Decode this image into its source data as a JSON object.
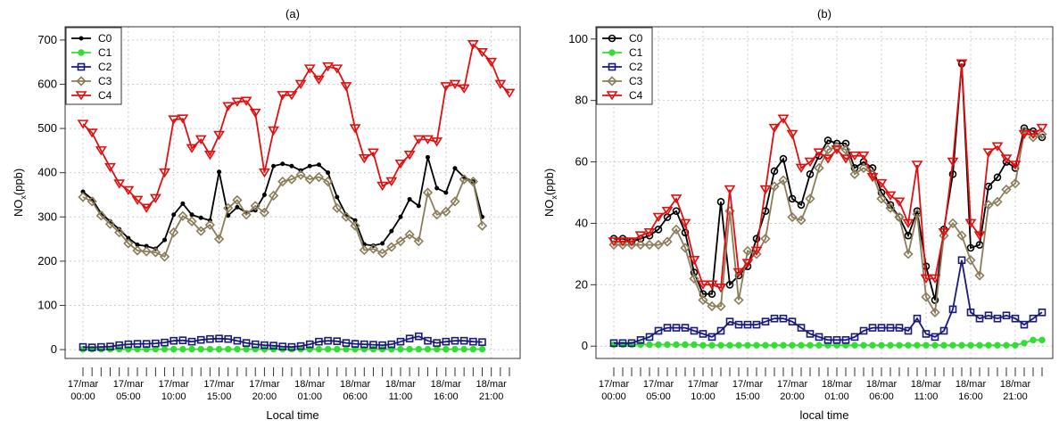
{
  "chart_data": [
    {
      "type": "line",
      "title": "(a)",
      "xlabel": "Local time",
      "ylabel": "NO",
      "ylabel_sub": "x",
      "ylabel_unit": "(ppb)",
      "ylim": [
        0,
        720
      ],
      "yticks": [
        "0",
        "100",
        "200",
        "300",
        "400",
        "500",
        "600",
        "700"
      ],
      "xtick_labels": [
        [
          "17/mar",
          "00:00"
        ],
        [
          "17/mar",
          "05:00"
        ],
        [
          "17/mar",
          "10:00"
        ],
        [
          "17/mar",
          "15:00"
        ],
        [
          "17/mar",
          "20:00"
        ],
        [
          "18/mar",
          "01:00"
        ],
        [
          "18/mar",
          "06:00"
        ],
        [
          "18/mar",
          "11:00"
        ],
        [
          "18/mar",
          "16:00"
        ],
        [
          "18/mar",
          "21:00"
        ]
      ],
      "grid": true,
      "legend_position": "top-left",
      "series": [
        {
          "name": "C0",
          "color": "#000000",
          "marker": "dot",
          "values": [
            357,
            340,
            308,
            290,
            272,
            252,
            237,
            234,
            228,
            248,
            305,
            330,
            305,
            298,
            292,
            402,
            303,
            322,
            310,
            315,
            350,
            415,
            420,
            415,
            405,
            415,
            418,
            400,
            345,
            305,
            292,
            238,
            235,
            240,
            268,
            300,
            340,
            325,
            435,
            365,
            355,
            410,
            390,
            380,
            300
          ]
        },
        {
          "name": "C1",
          "color": "#33dd33",
          "marker": "filled-circle",
          "values": [
            1,
            1,
            1,
            1,
            1,
            1,
            1,
            1,
            1,
            1,
            1,
            1,
            1,
            1,
            1,
            1,
            1,
            1,
            1,
            1,
            1,
            1,
            1,
            1,
            1,
            1,
            1,
            1,
            1,
            1,
            1,
            1,
            1,
            1,
            1,
            1,
            1,
            1,
            1,
            1,
            1,
            1,
            1,
            1,
            1
          ]
        },
        {
          "name": "C2",
          "color": "#1a1a7a",
          "marker": "square",
          "values": [
            6,
            5,
            6,
            7,
            10,
            12,
            13,
            13,
            14,
            16,
            20,
            21,
            18,
            22,
            24,
            25,
            24,
            20,
            15,
            12,
            10,
            9,
            7,
            6,
            8,
            12,
            18,
            20,
            19,
            15,
            13,
            12,
            11,
            10,
            12,
            18,
            25,
            30,
            20,
            15,
            18,
            20,
            20,
            18,
            17
          ]
        },
        {
          "name": "C3",
          "color": "#8b7d5a",
          "marker": "diamond",
          "values": [
            345,
            335,
            303,
            284,
            265,
            240,
            224,
            222,
            220,
            210,
            265,
            302,
            290,
            268,
            282,
            250,
            320,
            338,
            305,
            325,
            310,
            348,
            380,
            385,
            395,
            385,
            390,
            380,
            320,
            300,
            280,
            225,
            228,
            218,
            232,
            245,
            260,
            245,
            355,
            305,
            312,
            335,
            385,
            380,
            280
          ]
        },
        {
          "name": "C4",
          "color": "#e01010",
          "marker": "triangle-down",
          "values": [
            510,
            490,
            450,
            412,
            375,
            360,
            338,
            320,
            342,
            400,
            520,
            522,
            455,
            475,
            440,
            485,
            550,
            560,
            562,
            535,
            400,
            495,
            575,
            575,
            600,
            635,
            610,
            640,
            635,
            595,
            500,
            432,
            445,
            370,
            380,
            420,
            440,
            475,
            475,
            470,
            595,
            600,
            590,
            690,
            672,
            650,
            600,
            580
          ]
        }
      ]
    },
    {
      "type": "line",
      "title": "(b)",
      "xlabel": "local time",
      "ylabel": "NO",
      "ylabel_sub": "x",
      "ylabel_unit": "(ppb)",
      "ylim": [
        -2,
        103
      ],
      "yticks": [
        "0",
        "20",
        "40",
        "60",
        "80",
        "100"
      ],
      "xtick_labels": [
        [
          "17/mar",
          "00:00"
        ],
        [
          "17/mar",
          "05:00"
        ],
        [
          "17/mar",
          "10:00"
        ],
        [
          "17/mar",
          "15:00"
        ],
        [
          "17/mar",
          "20:00"
        ],
        [
          "18/mar",
          "01:00"
        ],
        [
          "18/mar",
          "06:00"
        ],
        [
          "18/mar",
          "11:00"
        ],
        [
          "18/mar",
          "16:00"
        ],
        [
          "18/mar",
          "21:00"
        ]
      ],
      "grid": true,
      "legend_position": "top-left",
      "series": [
        {
          "name": "C0",
          "color": "#000000",
          "marker": "open-circle",
          "values": [
            35,
            35,
            34,
            35,
            36,
            38,
            42,
            44,
            37,
            24,
            17,
            17,
            47,
            20,
            23,
            26,
            35,
            44,
            57,
            61,
            48,
            46,
            56,
            62,
            67,
            66,
            66,
            58,
            60,
            58,
            50,
            46,
            42,
            36,
            44,
            26,
            15,
            38,
            56,
            92,
            32,
            33,
            52,
            55,
            60,
            58,
            71,
            70,
            68
          ]
        },
        {
          "name": "C1",
          "color": "#33dd33",
          "marker": "filled-circle",
          "values": [
            0.5,
            0.5,
            0.5,
            0.5,
            0.5,
            0.5,
            0.5,
            0.5,
            0.5,
            0.5,
            0.3,
            0.3,
            0.3,
            0.3,
            0.3,
            0.3,
            0.3,
            0.3,
            0.3,
            0.3,
            0.3,
            0.3,
            0.3,
            0.3,
            0.3,
            0.3,
            0.3,
            0.3,
            0.3,
            0.3,
            0.3,
            0.3,
            0.3,
            0.3,
            0.3,
            0.3,
            0.3,
            0.3,
            0.3,
            0.3,
            0.3,
            0.3,
            0.3,
            0.3,
            0.3,
            0.3,
            1,
            2,
            2
          ]
        },
        {
          "name": "C2",
          "color": "#1a1a7a",
          "marker": "square",
          "values": [
            1,
            1,
            1,
            2,
            3,
            5,
            6,
            6,
            6,
            5,
            4,
            3,
            5,
            8,
            7,
            7,
            7,
            8,
            9,
            9,
            8,
            6,
            4,
            3,
            2,
            2,
            2,
            3,
            5,
            6,
            6,
            6,
            6,
            5,
            9,
            4,
            3,
            5,
            12,
            28,
            11,
            9,
            10,
            9,
            10,
            9,
            7,
            9,
            11
          ]
        },
        {
          "name": "C3",
          "color": "#8b7d5a",
          "marker": "diamond",
          "values": [
            33,
            33,
            33,
            33,
            33,
            33,
            34,
            38,
            32,
            22,
            15,
            13,
            13,
            44,
            15,
            31,
            30,
            35,
            52,
            54,
            42,
            41,
            48,
            58,
            64,
            65,
            64,
            56,
            58,
            56,
            48,
            45,
            42,
            30,
            43,
            16,
            11,
            36,
            40,
            36,
            28,
            23,
            46,
            47,
            51,
            53,
            70,
            68,
            69
          ]
        },
        {
          "name": "C4",
          "color": "#e01010",
          "marker": "triangle-down",
          "values": [
            34,
            34,
            34,
            36,
            37,
            42,
            44,
            48,
            40,
            28,
            20,
            20,
            19,
            51,
            24,
            27,
            31,
            51,
            71,
            74,
            69,
            58,
            60,
            63,
            61,
            64,
            61,
            62,
            62,
            55,
            53,
            49,
            47,
            40,
            59,
            22,
            22,
            37,
            60,
            92,
            40,
            36,
            63,
            65,
            61,
            59,
            69,
            69,
            71
          ]
        }
      ]
    }
  ]
}
